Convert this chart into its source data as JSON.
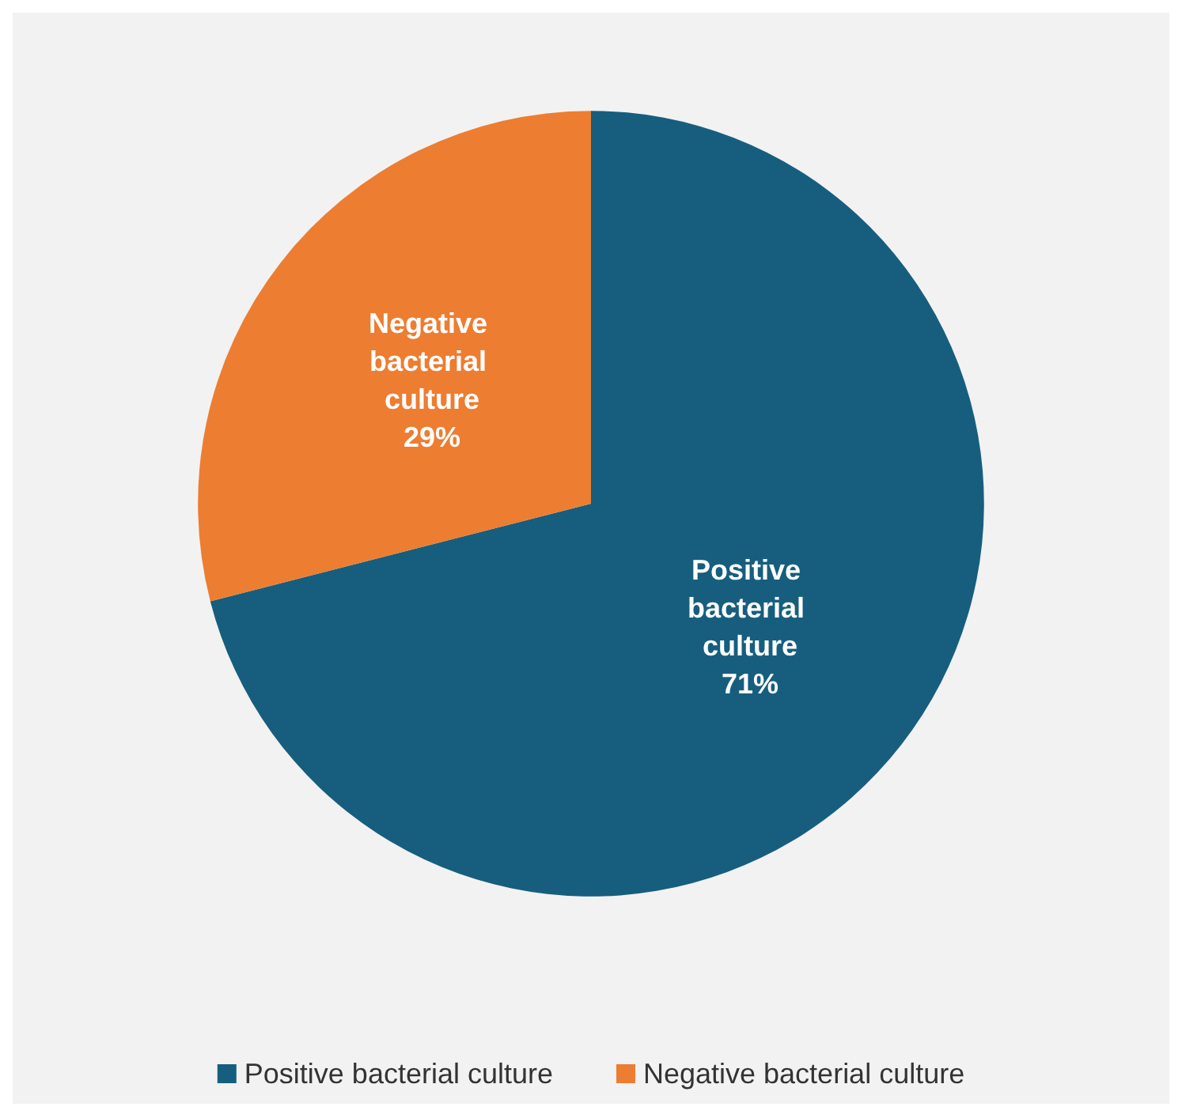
{
  "chart_data": {
    "type": "pie",
    "categories": [
      "Positive bacterial culture",
      "Negative bacterial culture"
    ],
    "values": [
      71,
      29
    ],
    "colors": [
      "#175e7e",
      "#ed7d31"
    ],
    "value_labels": [
      "71%",
      "29%"
    ],
    "legend": "bottom"
  }
}
